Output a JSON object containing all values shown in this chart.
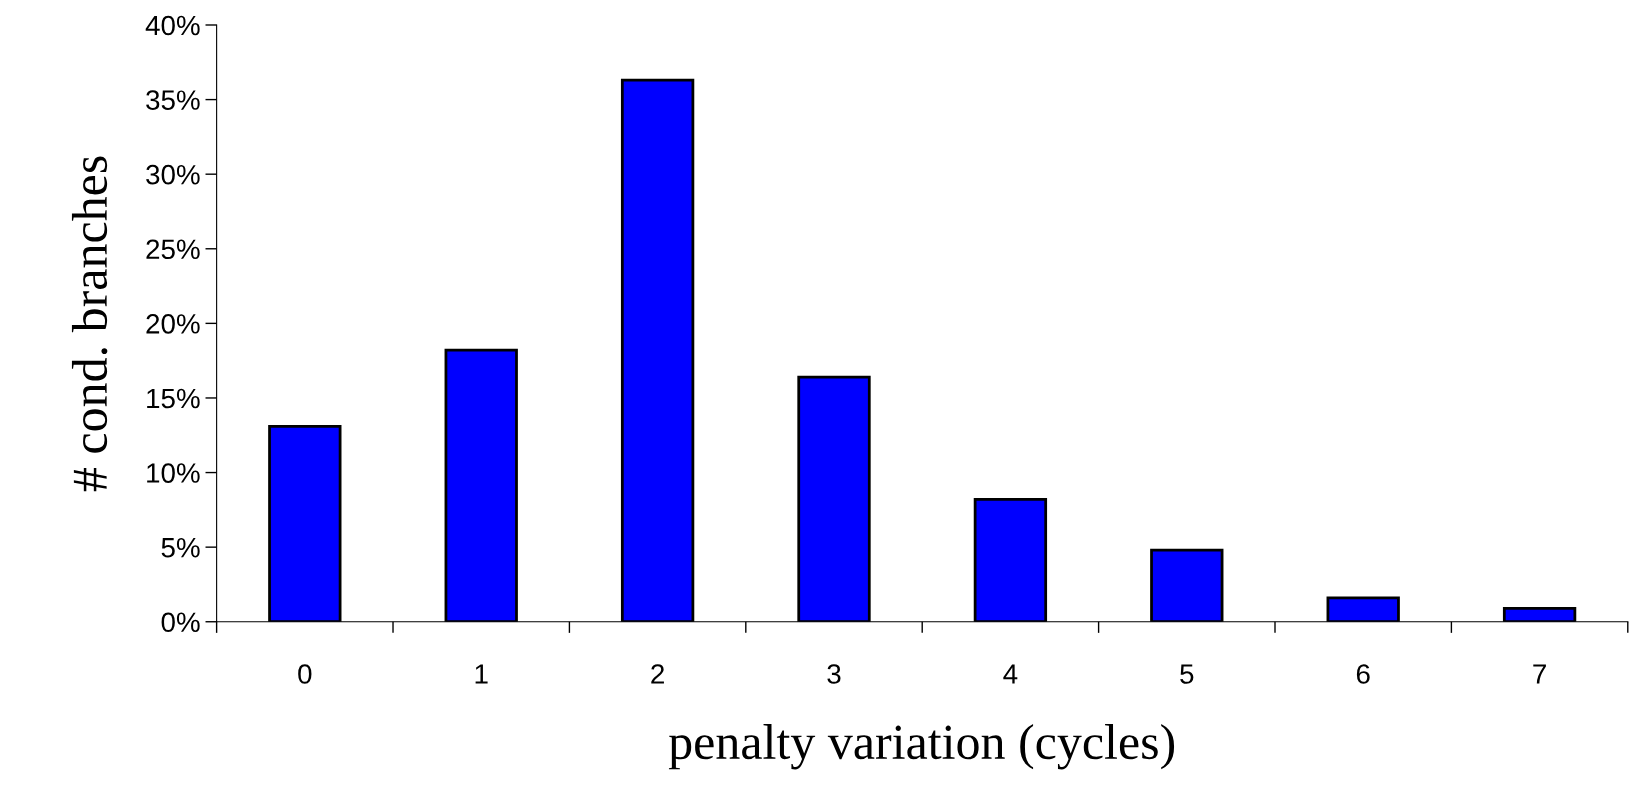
{
  "chart_data": {
    "type": "bar",
    "xlabel": "penalty variation (cycles)",
    "ylabel": "# cond. branches",
    "categories": [
      "0",
      "1",
      "2",
      "3",
      "4",
      "5",
      "6",
      "7"
    ],
    "values": [
      13.1,
      18.2,
      36.3,
      16.4,
      8.2,
      4.8,
      1.6,
      0.9
    ],
    "color": "#0000ff",
    "ylim": [
      0,
      40
    ],
    "yticks": [
      {
        "value": 0,
        "label": "0%"
      },
      {
        "value": 5,
        "label": "5%"
      },
      {
        "value": 10,
        "label": "10%"
      },
      {
        "value": 15,
        "label": "15%"
      },
      {
        "value": 20,
        "label": "20%"
      },
      {
        "value": 25,
        "label": "25%"
      },
      {
        "value": 30,
        "label": "30%"
      },
      {
        "value": 35,
        "label": "35%"
      },
      {
        "value": 40,
        "label": "40%"
      }
    ],
    "grid": false,
    "legend": false
  }
}
